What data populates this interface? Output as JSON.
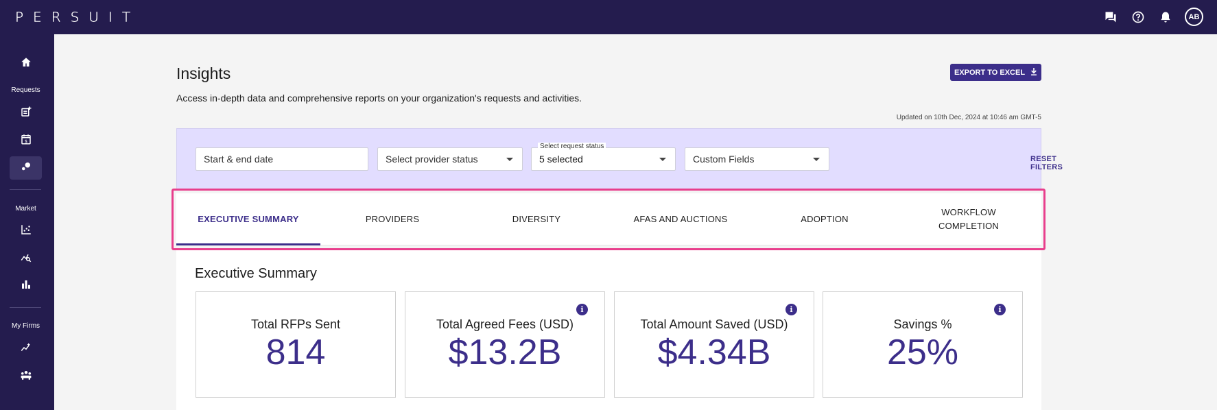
{
  "app": {
    "logo_text": "PERSUIT"
  },
  "topbar": {
    "icons": [
      "chat-icon",
      "help-icon",
      "bell-icon"
    ],
    "avatar_initials": "AB"
  },
  "sidebar": {
    "sections": {
      "requests": "Requests",
      "market": "Market",
      "my_firms": "My Firms"
    },
    "items": [
      {
        "icon": "home-icon",
        "active": false
      },
      {
        "icon": "new-request-icon",
        "active": false
      },
      {
        "icon": "calendar-dollar-icon",
        "active": false
      },
      {
        "icon": "insights-icon",
        "active": true
      },
      {
        "icon": "scatter-chart-icon",
        "active": false
      },
      {
        "icon": "market-search-icon",
        "active": false
      },
      {
        "icon": "bar-chart-icon",
        "active": false
      },
      {
        "icon": "trend-sparkle-icon",
        "active": false
      },
      {
        "icon": "firms-group-icon",
        "active": false
      }
    ]
  },
  "page": {
    "title": "Insights",
    "description": "Access in-depth data and comprehensive reports on your organization's requests and activities.",
    "export_label": "EXPORT TO EXCEL",
    "updated_text": "Updated on 10th Dec, 2024 at 10:46 am GMT-5"
  },
  "filters": {
    "date_placeholder": "Start & end date",
    "provider_status": "Select provider status",
    "request_status_label": "Select request status",
    "request_status_value": "5 selected",
    "custom_fields": "Custom Fields",
    "reset_label": "RESET FILTERS"
  },
  "tabs": [
    {
      "label": "EXECUTIVE SUMMARY",
      "active": true
    },
    {
      "label": "PROVIDERS",
      "active": false
    },
    {
      "label": "DIVERSITY",
      "active": false
    },
    {
      "label": "AFAS AND AUCTIONS",
      "active": false
    },
    {
      "label": "ADOPTION",
      "active": false
    },
    {
      "label": "WORKFLOW COMPLETION",
      "active": false
    }
  ],
  "summary": {
    "title": "Executive Summary",
    "cards": [
      {
        "label": "Total RFPs Sent",
        "value": "814",
        "info": false
      },
      {
        "label": "Total Agreed Fees (USD)",
        "value": "$13.2B",
        "info": true
      },
      {
        "label": "Total Amount Saved (USD)",
        "value": "$4.34B",
        "info": true
      },
      {
        "label": "Savings %",
        "value": "25%",
        "info": true
      }
    ]
  },
  "colors": {
    "nav_bg": "#241c4e",
    "accent": "#3c2e8a",
    "filter_panel": "#e2ddff",
    "highlight": "#e83e8c"
  }
}
